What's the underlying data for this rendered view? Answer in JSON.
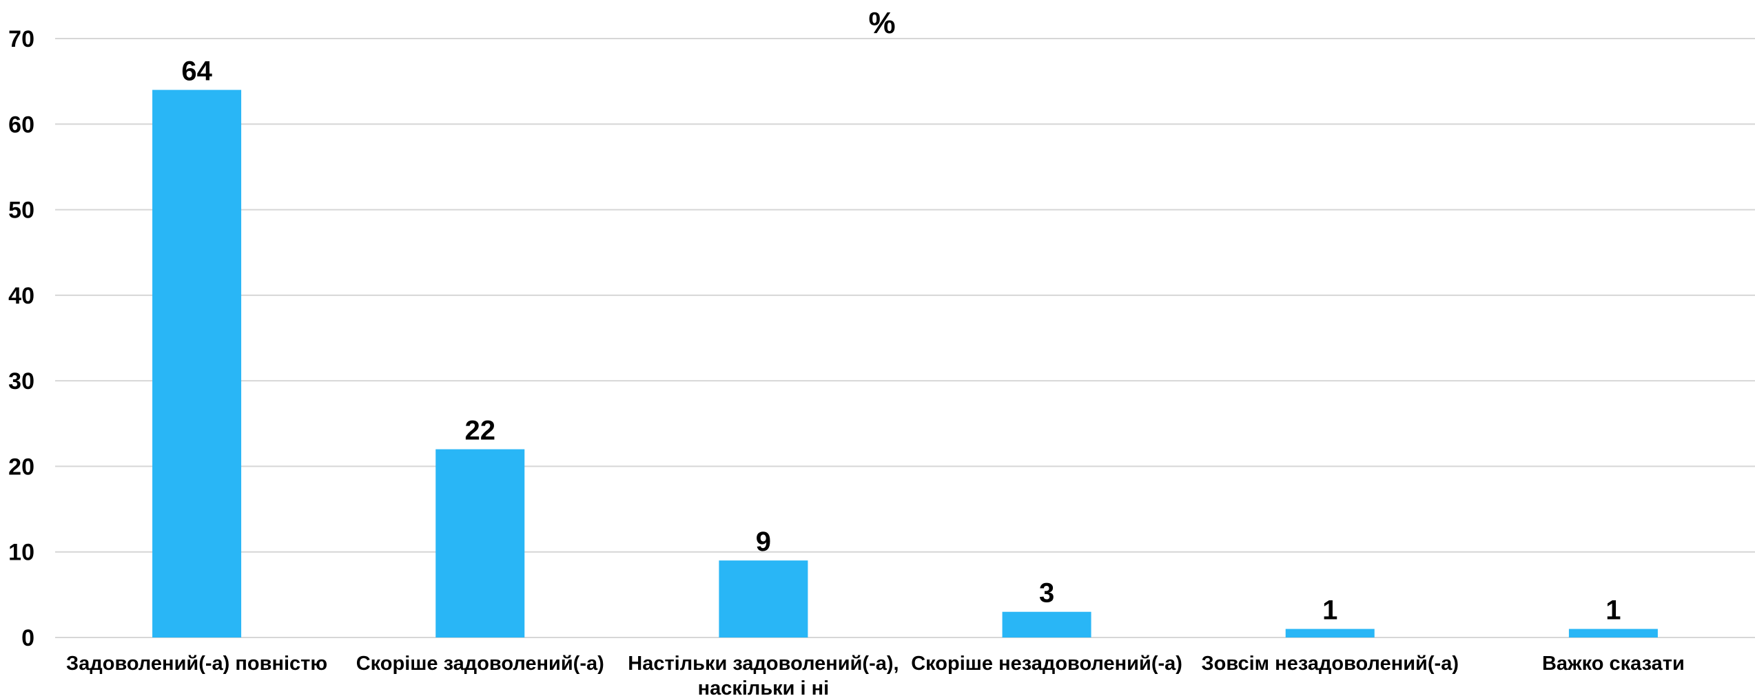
{
  "chart_data": {
    "type": "bar",
    "title": "%",
    "xlabel": "",
    "ylabel": "",
    "ylim": [
      0,
      70
    ],
    "yticks": [
      0,
      10,
      20,
      30,
      40,
      50,
      60,
      70
    ],
    "grid": true,
    "legend": "none",
    "bar_color": "#29b6f6",
    "categories": [
      [
        "Задоволений(-а) повністю"
      ],
      [
        "Скоріше задоволений(-а)"
      ],
      [
        "Настільки задоволений(-а),",
        "наскільки і ні"
      ],
      [
        "Скоріше незадоволений(-а)"
      ],
      [
        "Зовсім незадоволений(-а)"
      ],
      [
        "Важко сказати"
      ]
    ],
    "values": [
      64,
      22,
      9,
      3,
      1,
      1
    ],
    "data_labels": [
      "64",
      "22",
      "9",
      "3",
      "1",
      "1"
    ]
  }
}
